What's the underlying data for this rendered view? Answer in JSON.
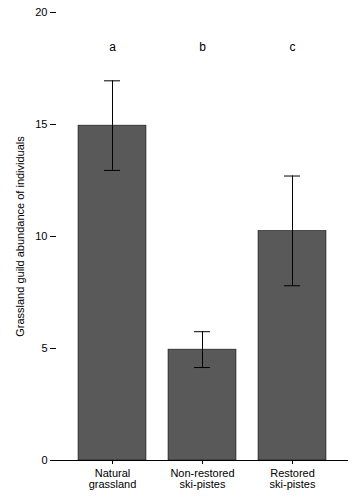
{
  "chart_data": {
    "type": "bar",
    "ylabel": "Grassland guild abundance of individuals",
    "categories": [
      "Natural grassland",
      "Non-restored ski-pistes",
      "Restored ski-pistes"
    ],
    "values": [
      14.95,
      4.95,
      10.25
    ],
    "error_low": [
      12.95,
      4.15,
      7.8
    ],
    "error_high": [
      16.95,
      5.75,
      12.7
    ],
    "annotations": [
      "a",
      "b",
      "c"
    ],
    "color": "#595959",
    "ylim": [
      0,
      20
    ],
    "yticks": [
      0,
      5,
      10,
      15,
      20
    ],
    "grid": false
  }
}
